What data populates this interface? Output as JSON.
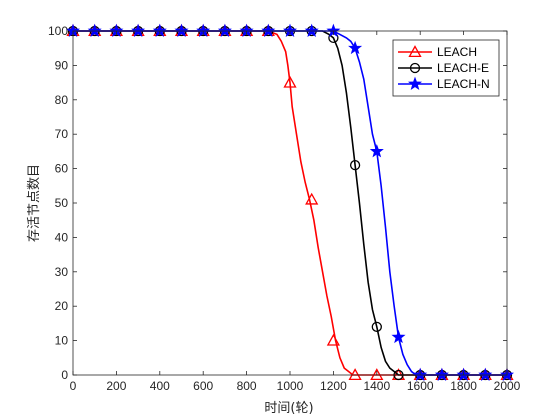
{
  "chart_data": {
    "type": "line",
    "title": "",
    "xlabel": "时间(轮)",
    "ylabel": "存活节点数目",
    "xlim": [
      0,
      2000
    ],
    "ylim": [
      0,
      100
    ],
    "xticks": [
      0,
      200,
      400,
      600,
      800,
      1000,
      1200,
      1400,
      1600,
      1800,
      2000
    ],
    "yticks": [
      0,
      10,
      20,
      30,
      40,
      50,
      60,
      70,
      80,
      90,
      100
    ],
    "grid": false,
    "legend_position": "top-right",
    "series": [
      {
        "name": "LEACH",
        "color": "#ff0000",
        "marker": "triangle",
        "x": [
          0,
          900,
          940,
          960,
          980,
          990,
          1000,
          1010,
          1030,
          1050,
          1070,
          1090,
          1110,
          1130,
          1150,
          1170,
          1190,
          1210,
          1230,
          1250,
          1270,
          1290,
          1300,
          1400,
          1600,
          1800,
          2000
        ],
        "y": [
          100,
          100,
          99,
          97,
          94,
          90,
          85,
          78,
          70,
          62,
          56,
          51,
          45,
          37,
          30,
          23,
          17,
          10,
          5,
          2,
          1,
          0,
          0,
          0,
          0,
          0,
          0
        ],
        "markers_x": [
          0,
          100,
          200,
          300,
          400,
          500,
          600,
          700,
          800,
          900,
          1000,
          1100,
          1200,
          1300,
          1400,
          1500,
          1600,
          1700,
          1800,
          1900,
          2000
        ],
        "markers_y": [
          100,
          100,
          100,
          100,
          100,
          100,
          100,
          100,
          100,
          100,
          85,
          51,
          10,
          0,
          0,
          0,
          0,
          0,
          0,
          0,
          0
        ]
      },
      {
        "name": "LEACH-E",
        "color": "#000000",
        "marker": "circle",
        "x": [
          0,
          1150,
          1180,
          1200,
          1220,
          1240,
          1260,
          1280,
          1300,
          1320,
          1340,
          1360,
          1380,
          1400,
          1420,
          1440,
          1460,
          1480,
          1500,
          1600,
          1800,
          2000
        ],
        "y": [
          100,
          100,
          99,
          98,
          95,
          90,
          82,
          72,
          61,
          50,
          38,
          27,
          19,
          14,
          8,
          4,
          2,
          1,
          0,
          0,
          0,
          0
        ],
        "markers_x": [
          0,
          100,
          200,
          300,
          400,
          500,
          600,
          700,
          800,
          900,
          1000,
          1100,
          1200,
          1300,
          1400,
          1500,
          1600,
          1700,
          1800,
          1900,
          2000
        ],
        "markers_y": [
          100,
          100,
          100,
          100,
          100,
          100,
          100,
          100,
          100,
          100,
          100,
          100,
          98,
          61,
          14,
          0,
          0,
          0,
          0,
          0,
          0
        ]
      },
      {
        "name": "LEACH-N",
        "color": "#0000ff",
        "marker": "star",
        "x": [
          0,
          1200,
          1230,
          1260,
          1280,
          1300,
          1320,
          1340,
          1360,
          1380,
          1400,
          1420,
          1440,
          1460,
          1480,
          1500,
          1520,
          1540,
          1560,
          1580,
          1600,
          1800,
          2000
        ],
        "y": [
          100,
          100,
          99,
          98,
          97,
          95,
          91,
          86,
          78,
          70,
          65,
          55,
          43,
          30,
          20,
          11,
          6,
          3,
          1,
          0,
          0,
          0,
          0
        ],
        "markers_x": [
          0,
          100,
          200,
          300,
          400,
          500,
          600,
          700,
          800,
          900,
          1000,
          1100,
          1200,
          1300,
          1400,
          1500,
          1600,
          1700,
          1800,
          1900,
          2000
        ],
        "markers_y": [
          100,
          100,
          100,
          100,
          100,
          100,
          100,
          100,
          100,
          100,
          100,
          100,
          100,
          95,
          65,
          11,
          0,
          0,
          0,
          0,
          0
        ]
      }
    ]
  }
}
